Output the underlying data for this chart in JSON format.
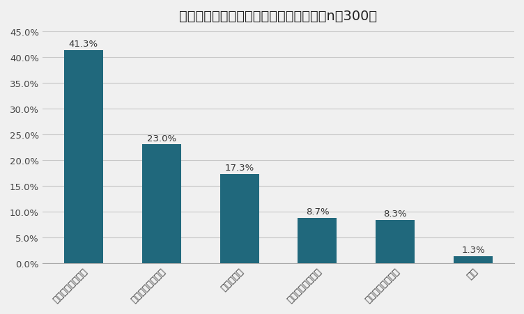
{
  "title": "自宅のトイレの種類はどれですか？　（n＝300）",
  "categories": [
    "手洗い付き分離型",
    "手洗い付き一体型",
    "タンクレス",
    "手洗いなし一体型",
    "手洗いなし分離型",
    "和式"
  ],
  "values": [
    0.413,
    0.23,
    0.173,
    0.087,
    0.083,
    0.013
  ],
  "labels": [
    "41.3%",
    "23.0%",
    "17.3%",
    "8.7%",
    "8.3%",
    "1.3%"
  ],
  "bar_color": "#20687c",
  "background_color": "#f0f0f0",
  "plot_bg_color": "#f0f0f0",
  "ylim": [
    0,
    0.45
  ],
  "yticks": [
    0.0,
    0.05,
    0.1,
    0.15,
    0.2,
    0.25,
    0.3,
    0.35,
    0.4,
    0.45
  ],
  "ytick_labels": [
    "0.0%",
    "5.0%",
    "10.0%",
    "15.0%",
    "20.0%",
    "25.0%",
    "30.0%",
    "35.0%",
    "40.0%",
    "45.0%"
  ],
  "title_fontsize": 14,
  "label_fontsize": 9.5,
  "tick_fontsize": 9.5
}
